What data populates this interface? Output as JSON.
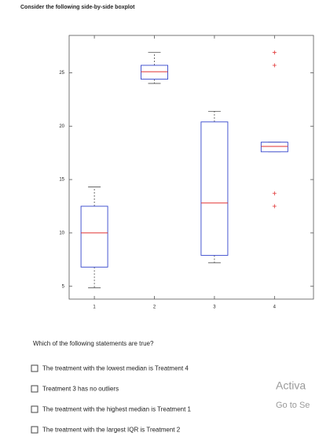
{
  "header": {
    "title": "Consider the following side-by-side boxplot"
  },
  "chart_data": {
    "type": "boxplot",
    "xticks": [
      1,
      2,
      3,
      4
    ],
    "xlim": [
      0.58,
      4.65
    ],
    "ylim": [
      3.8,
      28.5
    ],
    "yticks": [
      5,
      10,
      15,
      20,
      25
    ],
    "box_color": "#3344cc",
    "median_color": "#e03030",
    "flier_color": "#e03030",
    "boxes": [
      {
        "whislo": 4.85,
        "q1": 6.8,
        "med": 10,
        "q3": 12.5,
        "whishi": 14.3,
        "fliers": []
      },
      {
        "whislo": 24.0,
        "q1": 24.4,
        "med": 25.1,
        "q3": 25.7,
        "whishi": 26.9,
        "fliers": []
      },
      {
        "whislo": 7.2,
        "q1": 7.9,
        "med": 12.8,
        "q3": 20.4,
        "whishi": 21.4,
        "fliers": []
      },
      {
        "whislo": 17.6,
        "q1": 17.6,
        "med": 18.1,
        "q3": 18.5,
        "whishi": 18.5,
        "fliers": [
          26.9,
          25.7,
          13.7,
          12.5
        ]
      }
    ]
  },
  "question": {
    "text": "Which of the following statements are true?",
    "options": [
      "The treatment with the lowest median is Treatment 4",
      "Treatment 3 has no outliers",
      "The treatment with the highest median is Treatment 1",
      "The treatment with the largest IQR is Treatment 2"
    ]
  },
  "watermark": {
    "line1": "Activa",
    "line2": "Go to Se"
  }
}
